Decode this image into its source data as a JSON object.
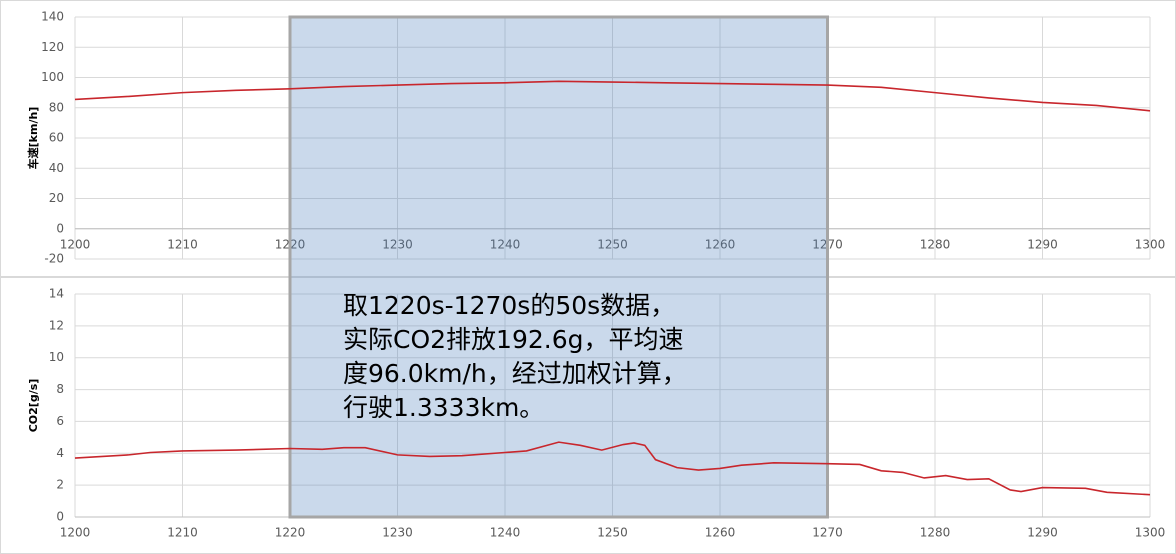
{
  "chart_data": [
    {
      "type": "line",
      "y_label": "车速[km/h]",
      "color": "#c8262c",
      "grid": true,
      "x": [
        1200,
        1205,
        1210,
        1215,
        1220,
        1225,
        1230,
        1235,
        1240,
        1245,
        1250,
        1255,
        1260,
        1265,
        1270,
        1275,
        1280,
        1285,
        1290,
        1295,
        1300
      ],
      "values": [
        85.5,
        87.5,
        90,
        91.5,
        92.5,
        94,
        95,
        96,
        96.5,
        97.5,
        97,
        96.5,
        96,
        95.5,
        95,
        93.5,
        90,
        86.5,
        83.5,
        81.5,
        78
      ],
      "xlim": [
        1200,
        1300
      ],
      "xticks": [
        1200,
        1210,
        1220,
        1230,
        1240,
        1250,
        1260,
        1270,
        1280,
        1290,
        1300
      ],
      "ylim": [
        -20,
        140
      ],
      "yticks": [
        -20,
        0,
        20,
        40,
        60,
        80,
        100,
        120,
        140
      ]
    },
    {
      "type": "line",
      "y_label": "CO2[g/s]",
      "color": "#c8262c",
      "grid": true,
      "x": [
        1200,
        1205,
        1207,
        1210,
        1215,
        1220,
        1223,
        1225,
        1227,
        1230,
        1233,
        1236,
        1240,
        1242,
        1245,
        1247,
        1249,
        1251,
        1252,
        1253,
        1254,
        1256,
        1258,
        1260,
        1262,
        1265,
        1270,
        1273,
        1275,
        1277,
        1279,
        1281,
        1283,
        1285,
        1287,
        1288,
        1290,
        1294,
        1296,
        1300
      ],
      "values": [
        3.7,
        3.9,
        4.05,
        4.15,
        4.2,
        4.3,
        4.25,
        4.35,
        4.35,
        3.9,
        3.8,
        3.85,
        4.05,
        4.15,
        4.7,
        4.5,
        4.2,
        4.55,
        4.65,
        4.5,
        3.6,
        3.1,
        2.95,
        3.05,
        3.25,
        3.4,
        3.35,
        3.3,
        2.9,
        2.8,
        2.45,
        2.6,
        2.35,
        2.4,
        1.7,
        1.6,
        1.85,
        1.8,
        1.55,
        1.4
      ],
      "xlim": [
        1200,
        1300
      ],
      "xticks": [
        1200,
        1210,
        1220,
        1230,
        1240,
        1250,
        1260,
        1270,
        1280,
        1290,
        1300
      ],
      "ylim": [
        0,
        14
      ],
      "yticks": [
        0,
        2,
        4,
        6,
        8,
        10,
        12,
        14
      ]
    }
  ],
  "highlight_range": [
    1220,
    1270
  ],
  "annotation": [
    "取1220s-1270s的50s数据，",
    "实际CO2排放192.6g，平均速",
    "度96.0km/h，经过加权计算，",
    "行驶1.3333km。"
  ]
}
